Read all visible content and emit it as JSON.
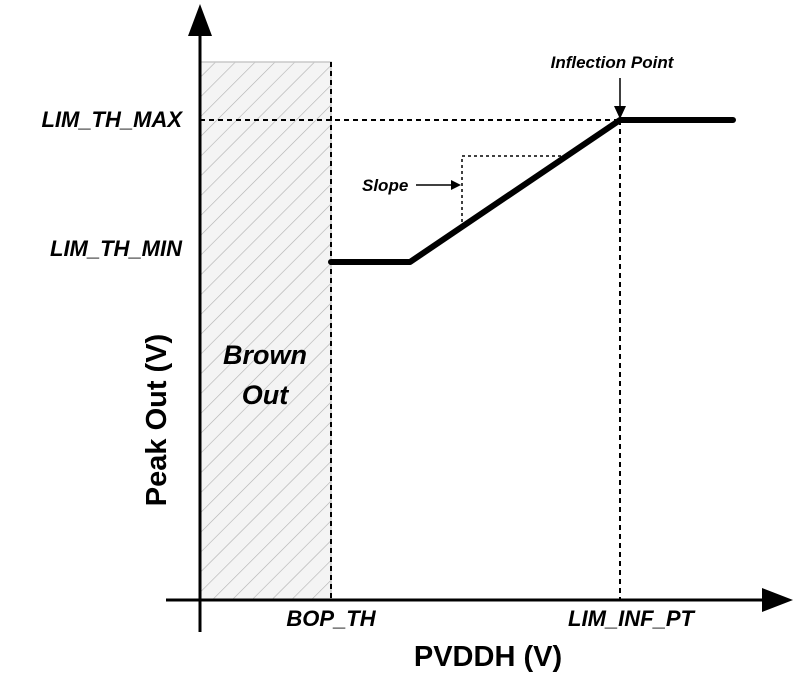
{
  "diagram": {
    "axes": {
      "x_title": "PVDDH (V)",
      "y_title": "Peak Out (V)"
    },
    "y_levels": {
      "max_label": "LIM_TH_MAX",
      "min_label": "LIM_TH_MIN"
    },
    "x_marks": {
      "bop_label": "BOP_TH",
      "inf_label": "LIM_INF_PT"
    },
    "region": {
      "line1": "Brown",
      "line2": "Out"
    },
    "annotations": {
      "slope": "Slope",
      "inflection": "Inflection Point"
    },
    "colors": {
      "stroke": "#000000",
      "hatch": "#b0b0b0",
      "region_fill": "#f4f4f4"
    }
  }
}
